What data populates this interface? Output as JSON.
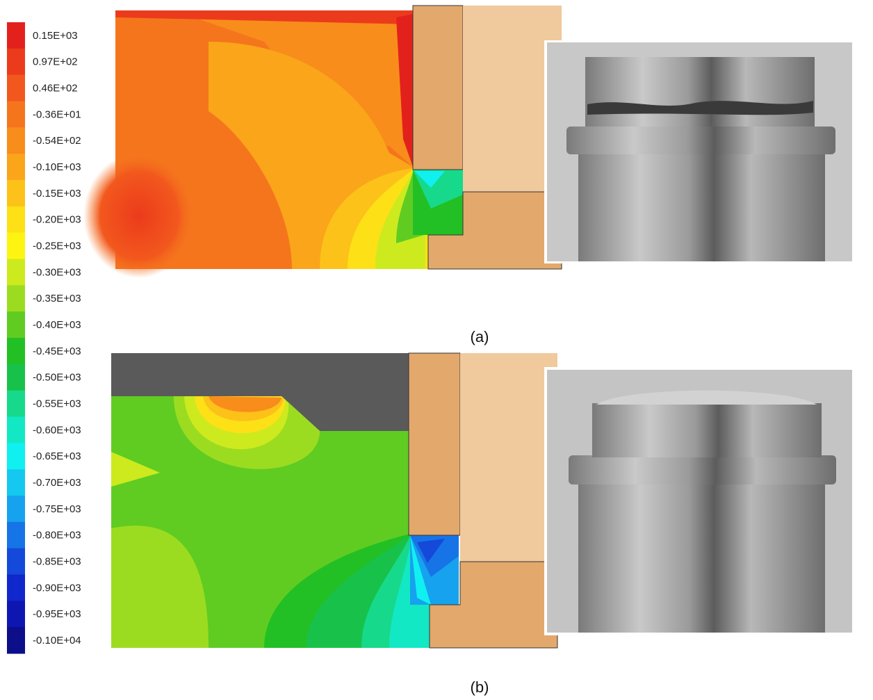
{
  "legend": {
    "items": [
      {
        "label": "0.15E+03",
        "color": "#e3211c"
      },
      {
        "label": "0.97E+02",
        "color": "#ec3b1c"
      },
      {
        "label": "0.46E+02",
        "color": "#f2581d"
      },
      {
        "label": "-0.36E+01",
        "color": "#f5751d"
      },
      {
        "label": "-0.54E+02",
        "color": "#f88d1b"
      },
      {
        "label": "-0.10E+03",
        "color": "#faa51a"
      },
      {
        "label": "-0.15E+03",
        "color": "#fcc219"
      },
      {
        "label": "-0.20E+03",
        "color": "#fde016"
      },
      {
        "label": "-0.25E+03",
        "color": "#fdf511"
      },
      {
        "label": "-0.30E+03",
        "color": "#cdea1f"
      },
      {
        "label": "-0.35E+03",
        "color": "#9cdc20"
      },
      {
        "label": "-0.40E+03",
        "color": "#60cc22"
      },
      {
        "label": "-0.45E+03",
        "color": "#22c024"
      },
      {
        "label": "-0.50E+03",
        "color": "#18c24a"
      },
      {
        "label": "-0.55E+03",
        "color": "#17d98b"
      },
      {
        "label": "-0.60E+03",
        "color": "#12e8c4"
      },
      {
        "label": "-0.65E+03",
        "color": "#10f0f0"
      },
      {
        "label": "-0.70E+03",
        "color": "#15c8f0"
      },
      {
        "label": "-0.75E+03",
        "color": "#16a2ee"
      },
      {
        "label": "-0.80E+03",
        "color": "#1774e6"
      },
      {
        "label": "-0.85E+03",
        "color": "#1449da"
      },
      {
        "label": "-0.90E+03",
        "color": "#1027cc"
      },
      {
        "label": "-0.95E+03",
        "color": "#0e16b2"
      },
      {
        "label": "-0.10E+04",
        "color": "#0c0e8a"
      }
    ]
  },
  "panels": [
    {
      "caption": "(a)"
    },
    {
      "caption": "(b)"
    }
  ]
}
